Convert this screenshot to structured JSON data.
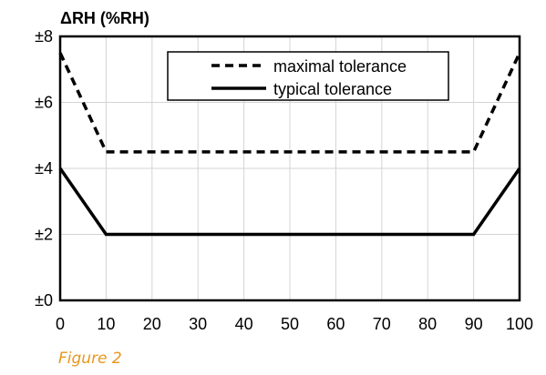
{
  "caption": "Figure 2",
  "chart_data": {
    "type": "line",
    "ylabel": "ΔRH (%RH)",
    "xlabel": "",
    "xlim": [
      0,
      100
    ],
    "ylim": [
      0,
      8
    ],
    "x_ticks": [
      "0",
      "10",
      "20",
      "30",
      "40",
      "50",
      "60",
      "70",
      "80",
      "90",
      "100"
    ],
    "y_ticks": [
      {
        "value": 0,
        "label": "±0"
      },
      {
        "value": 2,
        "label": "±2"
      },
      {
        "value": 4,
        "label": "±4"
      },
      {
        "value": 6,
        "label": "±6"
      },
      {
        "value": 8,
        "label": "±8"
      }
    ],
    "grid": true,
    "legend_position": "top-center",
    "series": [
      {
        "name": "maximal tolerance",
        "style": "dashed",
        "color": "#000000",
        "x": [
          0,
          10,
          90,
          100
        ],
        "y": [
          7.5,
          4.5,
          4.5,
          7.5
        ]
      },
      {
        "name": "typical tolerance",
        "style": "solid",
        "color": "#000000",
        "x": [
          0,
          10,
          90,
          100
        ],
        "y": [
          4,
          2,
          2,
          4
        ]
      }
    ]
  }
}
